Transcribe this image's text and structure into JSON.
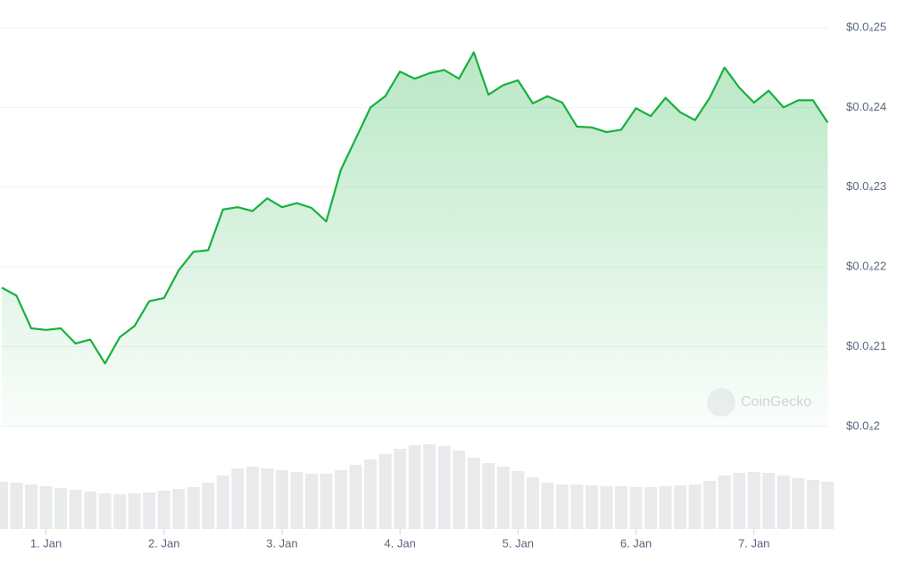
{
  "chart_data": [
    {
      "type": "line",
      "color": "#16b13f",
      "watermark": "CoinGecko",
      "x": [
        0.625,
        0.75,
        0.875,
        1,
        1.125,
        1.25,
        1.375,
        1.5,
        1.625,
        1.75,
        1.875,
        2,
        2.125,
        2.25,
        2.375,
        2.5,
        2.625,
        2.75,
        2.875,
        3,
        3.125,
        3.25,
        3.375,
        3.5,
        3.625,
        3.75,
        3.875,
        4,
        4.125,
        4.25,
        4.375,
        4.5,
        4.625,
        4.75,
        4.875,
        5,
        5.125,
        5.25,
        5.375,
        5.5,
        5.625,
        5.75,
        5.875,
        6,
        6.125,
        6.25,
        6.375,
        6.5,
        6.625,
        6.75,
        6.875,
        7,
        7.125,
        7.25,
        7.375,
        7.5,
        7.625
      ],
      "values": [
        2.174e-05,
        2.164e-05,
        2.123e-05,
        2.121e-05,
        2.123e-05,
        2.104e-05,
        2.109e-05,
        2.079e-05,
        2.112e-05,
        2.126e-05,
        2.157e-05,
        2.161e-05,
        2.196e-05,
        2.219e-05,
        2.221e-05,
        2.272e-05,
        2.275e-05,
        2.27e-05,
        2.286e-05,
        2.275e-05,
        2.28e-05,
        2.274e-05,
        2.257e-05,
        2.322e-05,
        2.361e-05,
        2.4e-05,
        2.414e-05,
        2.445e-05,
        2.436e-05,
        2.443e-05,
        2.447e-05,
        2.436e-05,
        2.469e-05,
        2.416e-05,
        2.428e-05,
        2.434e-05,
        2.405e-05,
        2.414e-05,
        2.406e-05,
        2.376e-05,
        2.375e-05,
        2.369e-05,
        2.372e-05,
        2.399e-05,
        2.389e-05,
        2.412e-05,
        2.394e-05,
        2.384e-05,
        2.412e-05,
        2.45e-05,
        2.425e-05,
        2.406e-05,
        2.421e-05,
        2.4e-05,
        2.409e-05,
        2.409e-05,
        2.381e-05
      ],
      "xlim": [
        0.61,
        7.63
      ],
      "xticks": [
        {
          "value": 1,
          "label": "1. Jan"
        },
        {
          "value": 2,
          "label": "2. Jan"
        },
        {
          "value": 3,
          "label": "3. Jan"
        },
        {
          "value": 4,
          "label": "4. Jan"
        },
        {
          "value": 5,
          "label": "5. Jan"
        },
        {
          "value": 6,
          "label": "6. Jan"
        },
        {
          "value": 7,
          "label": "7. Jan"
        }
      ],
      "ylim": [
        2e-05,
        2.5e-05
      ],
      "yticks": [
        {
          "value": 2e-05,
          "label": "$0.0₄2"
        },
        {
          "value": 2.1e-05,
          "label": "$0.0₄21"
        },
        {
          "value": 2.2e-05,
          "label": "$0.0₄22"
        },
        {
          "value": 2.3e-05,
          "label": "$0.0₄23"
        },
        {
          "value": 2.4e-05,
          "label": "$0.0₄24"
        },
        {
          "value": 2.5e-05,
          "label": "$0.0₄25"
        }
      ],
      "grid": true
    },
    {
      "type": "bar",
      "color": "#e9eaec",
      "x": [
        0.625,
        0.75,
        0.875,
        1,
        1.125,
        1.25,
        1.375,
        1.5,
        1.625,
        1.75,
        1.875,
        2,
        2.125,
        2.25,
        2.375,
        2.5,
        2.625,
        2.75,
        2.875,
        3,
        3.125,
        3.25,
        3.375,
        3.5,
        3.625,
        3.75,
        3.875,
        4,
        4.125,
        4.25,
        4.375,
        4.5,
        4.625,
        4.75,
        4.875,
        5,
        5.125,
        5.25,
        5.375,
        5.5,
        5.625,
        5.75,
        5.875,
        6,
        6.125,
        6.25,
        6.375,
        6.5,
        6.625,
        6.75,
        6.875,
        7,
        7.125,
        7.25,
        7.375,
        7.5,
        7.625
      ],
      "values": [
        53,
        52,
        50,
        48,
        46,
        44,
        42,
        40,
        39,
        40,
        41,
        43,
        45,
        47,
        52,
        60,
        68,
        70,
        68,
        66,
        64,
        62,
        62,
        66,
        72,
        78,
        84,
        90,
        94,
        95,
        93,
        88,
        80,
        74,
        70,
        65,
        58,
        52,
        50,
        50,
        49,
        48,
        48,
        47,
        47,
        48,
        49,
        50,
        54,
        60,
        63,
        64,
        63,
        60,
        57,
        55,
        53
      ]
    }
  ]
}
